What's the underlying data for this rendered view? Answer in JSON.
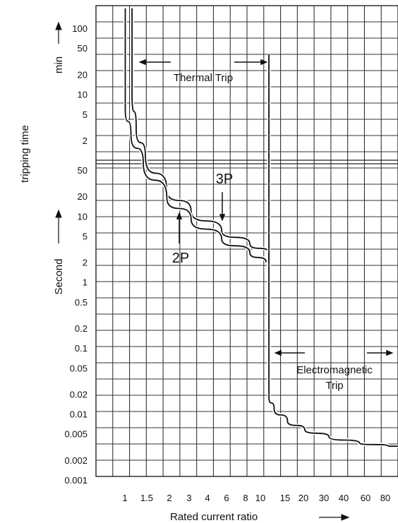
{
  "chart_data": {
    "type": "line",
    "xlabel": "Rated current ratio",
    "ylabel": "tripping time",
    "y_unit_upper": "min",
    "y_unit_lower": "Second",
    "x_scale": "log",
    "y_scale": "log",
    "grid": true,
    "x_ticks": [
      "1",
      "1.5",
      "2",
      "3",
      "4",
      "6",
      "8",
      "10",
      "15",
      "20",
      "30",
      "40",
      "60",
      "80"
    ],
    "y_ticks_min": [
      "100",
      "50",
      "20",
      "10",
      "5",
      "2"
    ],
    "y_ticks_sec": [
      "50",
      "20",
      "10",
      "5",
      "2",
      "1",
      "0.5",
      "0.2",
      "0.1",
      "0.05",
      "0.02",
      "0.01",
      "0.005",
      "0.002",
      "0.001"
    ],
    "series": [
      {
        "name": "3P",
        "points": [
          [
            1.12,
            "min:200"
          ],
          [
            1.12,
            "min:10"
          ],
          [
            1.2,
            "min:3"
          ],
          [
            1.4,
            "sec:80"
          ],
          [
            2,
            "sec:25"
          ],
          [
            3,
            "sec:12"
          ],
          [
            5,
            "sec:6"
          ],
          [
            8,
            "sec:3.8"
          ],
          [
            11,
            "sec:2.8"
          ]
        ]
      },
      {
        "name": "2P",
        "points": [
          [
            1.0,
            "min:200"
          ],
          [
            1.0,
            "min:6"
          ],
          [
            1.1,
            "min:2.5"
          ],
          [
            1.35,
            "sec:65"
          ],
          [
            2,
            "sec:19"
          ],
          [
            3,
            "sec:9"
          ],
          [
            5,
            "sec:4.5"
          ],
          [
            8,
            "sec:2.8"
          ],
          [
            10.5,
            "sec:2"
          ]
        ]
      },
      {
        "name": "Electromagnetic",
        "points": [
          [
            11,
            "min:40"
          ],
          [
            11,
            "sec:0.018"
          ],
          [
            12,
            "sec:0.012"
          ],
          [
            15,
            "sec:0.0078"
          ],
          [
            20,
            "sec:0.0058"
          ],
          [
            30,
            "sec:0.0045"
          ],
          [
            50,
            "sec:0.0036"
          ],
          [
            80,
            "sec:0.0033"
          ],
          [
            100,
            "sec:0.0032"
          ]
        ]
      }
    ],
    "annotations": {
      "thermal": "Thermal Trip",
      "electromagnetic_line1": "Electromagnetic",
      "electromagnetic_line2": "Trip",
      "label_3p": "3P",
      "label_2p": "2P"
    }
  }
}
